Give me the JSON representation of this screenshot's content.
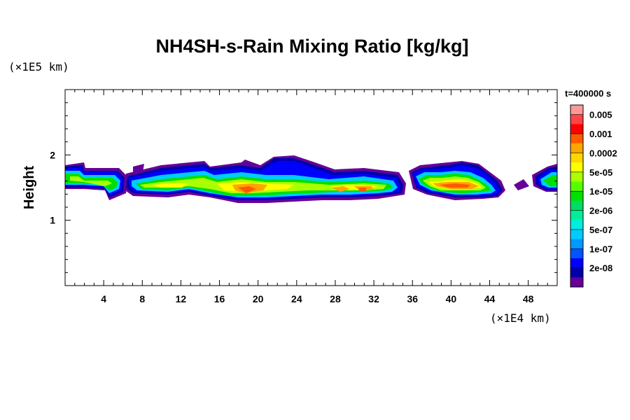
{
  "chart_data": {
    "type": "heatmap",
    "title": "NH4SH-s-Rain Mixing Ratio [kg/kg]",
    "ylabel": "Height",
    "x_unit": "(×1E4 km)",
    "y_unit": "(×1E5 km)",
    "x_ticks": [
      "4",
      "8",
      "12",
      "16",
      "20",
      "24",
      "28",
      "32",
      "36",
      "40",
      "44",
      "48"
    ],
    "y_ticks": [
      "1",
      "2"
    ],
    "xlim": [
      0,
      51
    ],
    "ylim": [
      0,
      3
    ],
    "time_label": "t=400000 s",
    "colorbar": {
      "labels": [
        "0.005",
        "0.001",
        "0.0002",
        "5e-05",
        "1e-05",
        "2e-06",
        "5e-07",
        "1e-07",
        "2e-08"
      ],
      "colors": [
        "#ff9999",
        "#ff4444",
        "#ff0000",
        "#ff5a00",
        "#ffa500",
        "#ffd700",
        "#ffff00",
        "#aaff00",
        "#55ff00",
        "#00e000",
        "#00dd66",
        "#00ee99",
        "#00eedd",
        "#00ccff",
        "#0099ff",
        "#0055ff",
        "#0000ff",
        "#0000aa",
        "#660099"
      ]
    }
  }
}
